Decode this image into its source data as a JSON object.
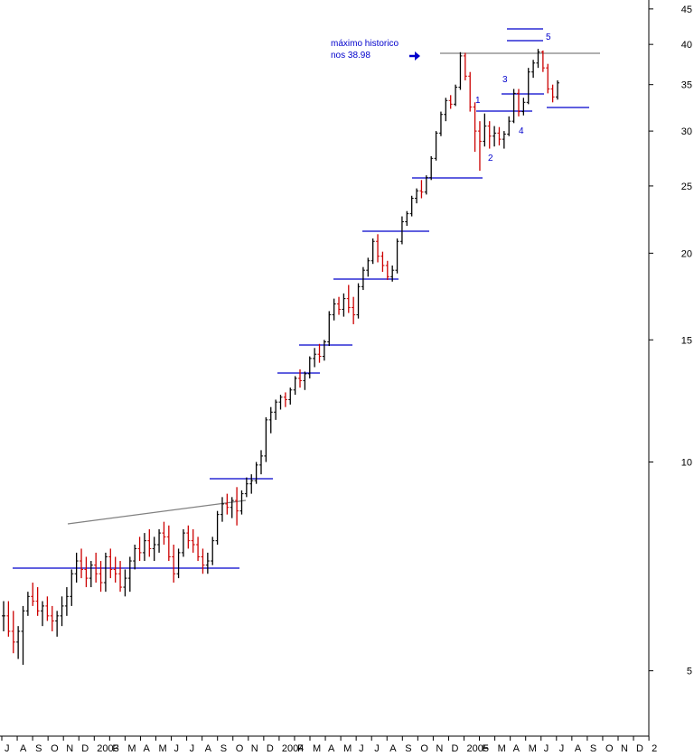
{
  "chart_data": {
    "type": "bar",
    "subtype": "ohlc",
    "title": "",
    "xlabel": "",
    "ylabel": "",
    "y_scale": "log",
    "ylim": [
      4.2,
      47
    ],
    "y_axis_position": "right",
    "y_ticks": [
      5,
      10,
      15,
      20,
      25,
      30,
      35,
      40,
      45
    ],
    "x_tick_labels": [
      "J",
      "A",
      "S",
      "O",
      "N",
      "D",
      "2003",
      "F",
      "M",
      "A",
      "M",
      "J",
      "J",
      "A",
      "S",
      "O",
      "N",
      "D",
      "2004",
      "F",
      "M",
      "A",
      "M",
      "J",
      "J",
      "A",
      "S",
      "O",
      "N",
      "D",
      "2005",
      "F",
      "M",
      "A",
      "M",
      "J",
      "J",
      "A",
      "S",
      "O",
      "N",
      "D",
      "2"
    ],
    "colors": {
      "up_bar": "#000000",
      "down_bar": "#cc0000",
      "trend_line": "#0000cc",
      "resistance_line": "#808080",
      "annotation": "#0000cc"
    },
    "annotations": [
      {
        "text": "máximo historico",
        "color": "#0000cc"
      },
      {
        "text": "nos 38.98",
        "color": "#0000cc"
      },
      {
        "text": "1",
        "color": "#0000cc"
      },
      {
        "text": "2",
        "color": "#0000cc"
      },
      {
        "text": "3",
        "color": "#0000cc"
      },
      {
        "text": "4",
        "color": "#0000cc"
      },
      {
        "text": "5",
        "color": "#0000cc"
      }
    ],
    "historical_high": 38.98,
    "series": [
      {
        "values": [
          [
            6.0,
            6.3,
            5.7,
            6.0
          ],
          [
            6.0,
            6.3,
            5.6,
            5.7
          ],
          [
            5.7,
            6.1,
            5.3,
            5.5
          ],
          [
            5.5,
            5.8,
            5.2,
            5.7
          ],
          [
            5.7,
            6.2,
            5.1,
            6.1
          ],
          [
            6.1,
            6.5,
            6.0,
            6.4
          ],
          [
            6.4,
            6.7,
            6.2,
            6.3
          ],
          [
            6.3,
            6.6,
            6.0,
            6.1
          ],
          [
            6.1,
            6.3,
            5.8,
            6.2
          ],
          [
            6.2,
            6.4,
            5.9,
            6.0
          ],
          [
            6.0,
            6.2,
            5.7,
            5.9
          ],
          [
            5.9,
            6.1,
            5.6,
            6.0
          ],
          [
            6.0,
            6.4,
            5.8,
            6.2
          ],
          [
            6.2,
            6.6,
            6.0,
            6.4
          ],
          [
            6.4,
            7.0,
            6.2,
            6.9
          ],
          [
            6.9,
            7.4,
            6.7,
            7.2
          ],
          [
            7.2,
            7.5,
            6.8,
            7.0
          ],
          [
            7.0,
            7.3,
            6.6,
            6.8
          ],
          [
            6.8,
            7.2,
            6.6,
            7.1
          ],
          [
            7.1,
            7.4,
            6.7,
            6.9
          ],
          [
            6.9,
            7.2,
            6.5,
            6.7
          ],
          [
            6.7,
            7.4,
            6.5,
            7.3
          ],
          [
            7.3,
            7.5,
            6.8,
            7.0
          ],
          [
            7.0,
            7.3,
            6.7,
            6.9
          ],
          [
            6.9,
            7.2,
            6.5,
            6.6
          ],
          [
            6.6,
            7.0,
            6.4,
            6.8
          ],
          [
            6.8,
            7.3,
            6.5,
            7.2
          ],
          [
            7.2,
            7.6,
            7.0,
            7.5
          ],
          [
            7.5,
            7.8,
            7.2,
            7.4
          ],
          [
            7.4,
            7.9,
            7.2,
            7.7
          ],
          [
            7.7,
            8.0,
            7.3,
            7.5
          ],
          [
            7.5,
            7.8,
            7.2,
            7.6
          ],
          [
            7.6,
            8.0,
            7.4,
            7.9
          ],
          [
            7.9,
            8.2,
            7.6,
            7.8
          ],
          [
            7.8,
            8.1,
            7.2,
            7.3
          ],
          [
            7.3,
            7.6,
            6.7,
            6.9
          ],
          [
            6.9,
            7.5,
            6.8,
            7.4
          ],
          [
            7.4,
            8.0,
            7.3,
            7.9
          ],
          [
            7.9,
            8.1,
            7.5,
            7.7
          ],
          [
            7.7,
            8.0,
            7.4,
            7.6
          ],
          [
            7.6,
            7.8,
            7.2,
            7.3
          ],
          [
            7.3,
            7.5,
            6.9,
            7.1
          ],
          [
            7.1,
            7.4,
            6.9,
            7.2
          ],
          [
            7.2,
            7.8,
            7.1,
            7.7
          ],
          [
            7.7,
            8.5,
            7.6,
            8.4
          ],
          [
            8.4,
            8.9,
            8.2,
            8.7
          ],
          [
            8.7,
            9.0,
            8.4,
            8.6
          ],
          [
            8.6,
            8.9,
            8.3,
            8.8
          ],
          [
            8.8,
            9.2,
            8.1,
            8.5
          ],
          [
            8.5,
            9.1,
            8.4,
            9.0
          ],
          [
            9.0,
            9.5,
            8.9,
            9.3
          ],
          [
            9.3,
            9.6,
            9.0,
            9.4
          ],
          [
            9.4,
            10.0,
            9.3,
            9.9
          ],
          [
            9.9,
            10.4,
            9.6,
            10.2
          ],
          [
            10.2,
            11.6,
            10.0,
            11.5
          ],
          [
            11.5,
            12.0,
            11.0,
            11.8
          ],
          [
            11.8,
            12.3,
            11.5,
            12.2
          ],
          [
            12.2,
            12.5,
            11.9,
            12.4
          ],
          [
            12.4,
            12.6,
            12.0,
            12.3
          ],
          [
            12.3,
            12.8,
            12.1,
            12.7
          ],
          [
            12.7,
            13.3,
            12.5,
            13.2
          ],
          [
            13.2,
            13.6,
            12.8,
            13.1
          ],
          [
            13.1,
            13.5,
            12.7,
            13.4
          ],
          [
            13.4,
            14.2,
            13.2,
            14.1
          ],
          [
            14.1,
            14.6,
            13.7,
            14.3
          ],
          [
            14.3,
            14.8,
            13.9,
            14.2
          ],
          [
            14.2,
            15.0,
            14.0,
            14.9
          ],
          [
            14.9,
            16.5,
            14.7,
            16.3
          ],
          [
            16.3,
            17.2,
            16.0,
            16.9
          ],
          [
            16.9,
            17.3,
            16.3,
            16.6
          ],
          [
            16.6,
            17.5,
            16.2,
            17.2
          ],
          [
            17.2,
            18.0,
            16.4,
            16.7
          ],
          [
            16.7,
            17.3,
            15.8,
            16.3
          ],
          [
            16.3,
            18.1,
            16.1,
            17.9
          ],
          [
            17.9,
            19.1,
            17.7,
            18.9
          ],
          [
            18.9,
            19.7,
            18.5,
            19.5
          ],
          [
            19.5,
            21.0,
            19.3,
            20.8
          ],
          [
            20.8,
            21.3,
            19.4,
            19.8
          ],
          [
            19.8,
            20.1,
            18.8,
            19.2
          ],
          [
            19.2,
            19.5,
            18.3,
            18.5
          ],
          [
            18.5,
            19.2,
            18.2,
            18.9
          ],
          [
            18.9,
            21.0,
            18.7,
            20.8
          ],
          [
            20.8,
            22.6,
            20.6,
            22.2
          ],
          [
            22.2,
            23.0,
            21.9,
            22.8
          ],
          [
            22.8,
            24.2,
            22.6,
            24.0
          ],
          [
            24.0,
            24.8,
            23.6,
            24.6
          ],
          [
            24.6,
            25.5,
            24.0,
            24.5
          ],
          [
            24.5,
            25.9,
            24.3,
            25.7
          ],
          [
            25.7,
            27.6,
            25.5,
            27.4
          ],
          [
            27.4,
            30.0,
            27.2,
            29.8
          ],
          [
            29.8,
            32.0,
            29.5,
            31.7
          ],
          [
            31.7,
            33.5,
            31.0,
            33.2
          ],
          [
            33.2,
            33.8,
            32.3,
            32.8
          ],
          [
            32.8,
            35.0,
            32.6,
            34.7
          ],
          [
            34.7,
            38.98,
            34.4,
            38.5
          ],
          [
            38.5,
            38.9,
            35.5,
            36.0
          ],
          [
            36.0,
            36.5,
            32.0,
            32.5
          ],
          [
            32.5,
            33.0,
            28.0,
            30.0
          ],
          [
            30.0,
            31.0,
            26.3,
            29.0
          ],
          [
            29.0,
            31.8,
            28.5,
            30.5
          ],
          [
            30.5,
            31.0,
            28.3,
            29.5
          ],
          [
            29.5,
            30.5,
            28.5,
            29.8
          ],
          [
            29.8,
            30.4,
            28.6,
            29.2
          ],
          [
            29.2,
            30.0,
            28.3,
            29.7
          ],
          [
            29.7,
            31.5,
            29.5,
            31.0
          ],
          [
            31.0,
            34.5,
            30.8,
            34.0
          ],
          [
            34.0,
            34.5,
            31.5,
            32.0
          ],
          [
            32.0,
            33.5,
            31.6,
            33.0
          ],
          [
            33.0,
            37.0,
            32.8,
            36.5
          ],
          [
            36.5,
            38.0,
            35.8,
            37.6
          ],
          [
            37.6,
            39.4,
            37.0,
            39.0
          ],
          [
            39.0,
            39.2,
            36.5,
            37.0
          ],
          [
            37.0,
            37.5,
            34.0,
            34.5
          ],
          [
            34.5,
            35.0,
            33.0,
            33.6
          ],
          [
            33.6,
            35.5,
            33.3,
            35.2
          ]
        ]
      }
    ],
    "date_range": "2002-07 to 2005-06",
    "bar_interval": "weekly-ish (approx. 3.2 bars per month)"
  }
}
